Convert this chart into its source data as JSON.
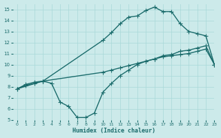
{
  "line1_x": [
    0,
    1,
    2,
    3,
    4,
    5,
    6,
    7,
    8,
    9,
    10,
    11,
    12,
    13,
    14,
    15,
    16,
    17,
    18,
    19,
    20,
    21,
    22,
    23
  ],
  "line1_y": [
    7.8,
    8.2,
    8.4,
    8.5,
    8.3,
    6.6,
    6.2,
    5.2,
    5.2,
    5.6,
    7.5,
    8.3,
    9.0,
    9.5,
    10.0,
    10.3,
    10.5,
    10.8,
    10.9,
    11.2,
    11.3,
    11.5,
    11.7,
    10.0
  ],
  "line2_x": [
    0,
    3,
    10,
    11,
    12,
    13,
    14,
    15,
    16,
    17,
    18,
    19,
    20,
    21,
    22,
    23
  ],
  "line2_y": [
    7.8,
    8.5,
    9.3,
    9.5,
    9.7,
    9.9,
    10.1,
    10.3,
    10.5,
    10.7,
    10.8,
    10.9,
    11.0,
    11.2,
    11.4,
    10.0
  ],
  "line3_x": [
    0,
    1,
    2,
    3,
    10,
    11,
    12,
    13,
    14,
    15,
    16,
    17,
    18,
    19,
    20,
    21,
    22,
    23
  ],
  "line3_y": [
    7.8,
    8.1,
    8.3,
    8.5,
    12.2,
    12.9,
    13.7,
    14.3,
    14.4,
    14.9,
    15.2,
    14.8,
    14.8,
    13.7,
    13.0,
    12.8,
    12.6,
    10.0
  ],
  "line_color": "#1a6b6b",
  "bg_color": "#cceaea",
  "grid_color": "#a8d8d8",
  "xlabel": "Humidex (Indice chaleur)",
  "xlim": [
    -0.5,
    23
  ],
  "ylim": [
    5,
    15.5
  ],
  "yticks": [
    5,
    6,
    7,
    8,
    9,
    10,
    11,
    12,
    13,
    14,
    15
  ],
  "xticks": [
    0,
    1,
    2,
    3,
    4,
    5,
    6,
    7,
    8,
    9,
    10,
    11,
    12,
    13,
    14,
    15,
    16,
    17,
    18,
    19,
    20,
    21,
    22,
    23
  ],
  "marker": "+",
  "markersize": 4,
  "linewidth": 1.0
}
